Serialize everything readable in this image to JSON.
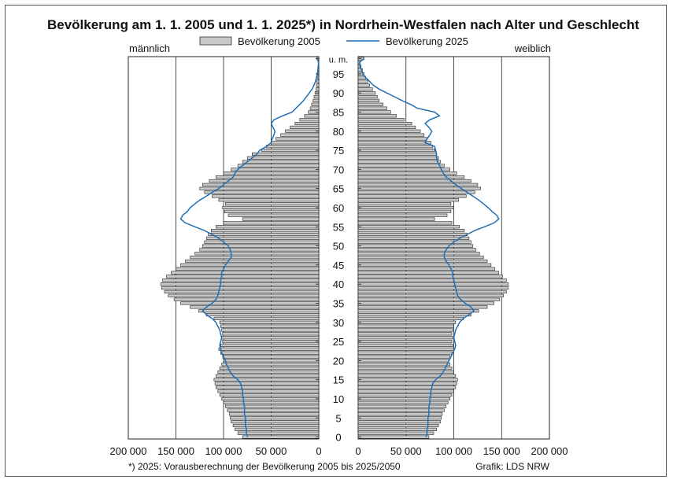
{
  "chart_data": {
    "type": "bar",
    "orientation": "horizontal-population-pyramid",
    "title": "Bevölkerung am 1. 1. 2005 und 1. 1. 2025*) in Nordrhein-Westfalen nach Alter und Geschlecht",
    "left_label": "männlich",
    "right_label": "weiblich",
    "footnote": "*) 2025: Vorausberechnung der Bevölkerung 2005 bis 2025/2050",
    "credit": "Grafik: LDS NRW",
    "legend_placement": "top",
    "xlim": [
      0,
      200000
    ],
    "x_ticks": [
      {
        "value": 200000,
        "label": "200 000"
      },
      {
        "value": 150000,
        "label": "150 000"
      },
      {
        "value": 100000,
        "label": "100 000"
      },
      {
        "value": 50000,
        "label": "50 000"
      },
      {
        "value": 0,
        "label": "0"
      }
    ],
    "age_ticks": [
      {
        "age": 0,
        "label": "0"
      },
      {
        "age": 5,
        "label": "5"
      },
      {
        "age": 10,
        "label": "10"
      },
      {
        "age": 15,
        "label": "15"
      },
      {
        "age": 20,
        "label": "20"
      },
      {
        "age": 25,
        "label": "25"
      },
      {
        "age": 30,
        "label": "30"
      },
      {
        "age": 35,
        "label": "35"
      },
      {
        "age": 40,
        "label": "40"
      },
      {
        "age": 45,
        "label": "45"
      },
      {
        "age": 50,
        "label": "50"
      },
      {
        "age": 55,
        "label": "55"
      },
      {
        "age": 60,
        "label": "60"
      },
      {
        "age": 65,
        "label": "65"
      },
      {
        "age": 70,
        "label": "70"
      },
      {
        "age": 75,
        "label": "75"
      },
      {
        "age": 80,
        "label": "80"
      },
      {
        "age": 85,
        "label": "85"
      },
      {
        "age": 90,
        "label": "90"
      },
      {
        "age": 95,
        "label": "95"
      },
      {
        "age": 99,
        "label": "u. m."
      }
    ],
    "ages": [
      0,
      1,
      2,
      3,
      4,
      5,
      6,
      7,
      8,
      9,
      10,
      11,
      12,
      13,
      14,
      15,
      16,
      17,
      18,
      19,
      20,
      21,
      22,
      23,
      24,
      25,
      26,
      27,
      28,
      29,
      30,
      31,
      32,
      33,
      34,
      35,
      36,
      37,
      38,
      39,
      40,
      41,
      42,
      43,
      44,
      45,
      46,
      47,
      48,
      49,
      50,
      51,
      52,
      53,
      54,
      55,
      56,
      57,
      58,
      59,
      60,
      61,
      62,
      63,
      64,
      65,
      66,
      67,
      68,
      69,
      70,
      71,
      72,
      73,
      74,
      75,
      76,
      77,
      78,
      79,
      80,
      81,
      82,
      83,
      84,
      85,
      86,
      87,
      88,
      89,
      90,
      91,
      92,
      93,
      94,
      95,
      96,
      97,
      98,
      99
    ],
    "series": [
      {
        "name": "Bevölkerung 2005",
        "style": "bars",
        "color": "#c8c8c8",
        "male": [
          80000,
          85000,
          88000,
          90000,
          92000,
          93000,
          94000,
          96000,
          98000,
          100000,
          102000,
          104000,
          106000,
          108000,
          109000,
          110000,
          108000,
          106000,
          104000,
          102000,
          100000,
          101000,
          103000,
          105000,
          103000,
          101000,
          102000,
          101000,
          102000,
          103000,
          104000,
          110000,
          118000,
          126000,
          135000,
          145000,
          152000,
          158000,
          162000,
          165000,
          166000,
          164000,
          160000,
          155000,
          150000,
          145000,
          140000,
          135000,
          130000,
          125000,
          122000,
          120000,
          118000,
          116000,
          113000,
          108000,
          100000,
          80000,
          95000,
          99000,
          101000,
          98000,
          105000,
          112000,
          120000,
          125000,
          122000,
          115000,
          108000,
          100000,
          92000,
          85000,
          80000,
          75000,
          70000,
          60000,
          55000,
          50000,
          45000,
          40000,
          35000,
          30000,
          25000,
          20000,
          15000,
          11000,
          9000,
          7500,
          6000,
          5000,
          4000,
          3000,
          2500,
          2000,
          1500,
          1200,
          900,
          600,
          400,
          2000
        ]
      },
      {
        "name": "Bevölkerung 2025",
        "style": "line",
        "color": "#1f6fb5",
        "male": [
          75000,
          76000,
          76000,
          77000,
          77000,
          77000,
          78000,
          78000,
          78000,
          79000,
          79000,
          80000,
          80000,
          81000,
          82000,
          85000,
          90000,
          93000,
          95000,
          97000,
          98000,
          100000,
          102000,
          103000,
          104000,
          103000,
          102000,
          103000,
          104000,
          106000,
          108000,
          112000,
          118000,
          122000,
          118000,
          112000,
          108000,
          106000,
          105000,
          104000,
          103000,
          103000,
          102000,
          102000,
          100000,
          98000,
          95000,
          92000,
          92000,
          93000,
          95000,
          100000,
          105000,
          112000,
          120000,
          130000,
          140000,
          145000,
          143000,
          138000,
          135000,
          130000,
          125000,
          118000,
          112000,
          105000,
          100000,
          95000,
          90000,
          88000,
          85000,
          80000,
          75000,
          70000,
          65000,
          62000,
          55000,
          50000,
          49000,
          47000,
          46000,
          48000,
          50000,
          47000,
          38000,
          28000,
          24000,
          20000,
          16000,
          13000,
          10000,
          7000,
          5000,
          3500,
          2500,
          1500,
          1000,
          600,
          300,
          1500
        ]
      },
      {
        "name": "Bevölkerung 2005",
        "style": "bars",
        "female": [
          74000,
          79000,
          82000,
          84000,
          86000,
          87000,
          88000,
          90000,
          92000,
          94000,
          96000,
          98000,
          100000,
          102000,
          103000,
          104000,
          102000,
          100000,
          98000,
          96000,
          95000,
          96000,
          98000,
          100000,
          99000,
          98000,
          99000,
          98000,
          99000,
          100000,
          102000,
          110000,
          118000,
          126000,
          135000,
          142000,
          148000,
          152000,
          155000,
          157000,
          157000,
          155000,
          151000,
          147000,
          143000,
          139000,
          135000,
          131000,
          127000,
          123000,
          120000,
          118000,
          116000,
          114000,
          111000,
          106000,
          98000,
          80000,
          93000,
          97000,
          100000,
          97000,
          105000,
          113000,
          122000,
          128000,
          125000,
          118000,
          111000,
          103000,
          96000,
          90000,
          86000,
          84000,
          82000,
          80000,
          78000,
          76000,
          72000,
          69000,
          65000,
          60000,
          56000,
          48000,
          40000,
          34000,
          30000,
          26000,
          22000,
          20000,
          18000,
          15000,
          12000,
          10000,
          8000,
          6000,
          4500,
          3000,
          2000,
          6000
        ]
      },
      {
        "name": "Bevölkerung 2025",
        "style": "line",
        "female": [
          71000,
          72000,
          72000,
          73000,
          73000,
          73000,
          74000,
          74000,
          74000,
          75000,
          75000,
          76000,
          76000,
          77000,
          78000,
          81000,
          86000,
          89000,
          91000,
          93000,
          95000,
          97000,
          99000,
          101000,
          102000,
          101000,
          100000,
          101000,
          102000,
          104000,
          106000,
          110000,
          116000,
          121000,
          118000,
          112000,
          107000,
          104000,
          103000,
          102000,
          101000,
          100000,
          99000,
          99000,
          97000,
          95000,
          92000,
          90000,
          90000,
          92000,
          95000,
          100000,
          106000,
          114000,
          122000,
          132000,
          142000,
          147000,
          145000,
          140000,
          136000,
          131000,
          126000,
          120000,
          114000,
          108000,
          102000,
          97000,
          92000,
          89000,
          87000,
          85000,
          83000,
          82000,
          82000,
          81000,
          80000,
          70000,
          72000,
          75000,
          77000,
          74000,
          70000,
          75000,
          85000,
          80000,
          62000,
          55000,
          46000,
          38000,
          30000,
          22000,
          16000,
          12000,
          8000,
          5000,
          3500,
          2000,
          1500,
          6000
        ]
      }
    ]
  }
}
